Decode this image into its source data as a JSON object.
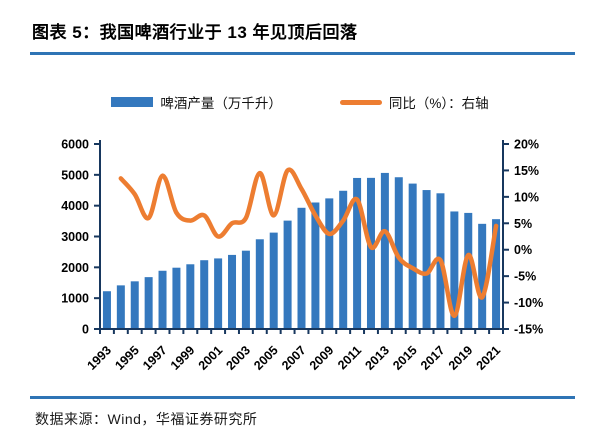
{
  "header": {
    "title": "图表 5：我国啤酒行业于 13 年见顶后回落"
  },
  "legend": [
    {
      "label": "啤酒产量（万千升）",
      "type": "bar",
      "color": "#3478BE"
    },
    {
      "label": "同比（%）：右轴",
      "type": "line",
      "color": "#ED7D31"
    }
  ],
  "footer": {
    "source": "数据来源：Wind，华福证券研究所"
  },
  "colors": {
    "bar": "#3478BE",
    "line": "#ED7D31",
    "axis": "#17375E",
    "rule": "#2E74B5",
    "text": "#000000"
  },
  "chart_data": {
    "type": "bar",
    "title": "我国啤酒行业于13年见顶后回落",
    "categories": [
      "1993",
      "1994",
      "1995",
      "1996",
      "1997",
      "1998",
      "1999",
      "2000",
      "2001",
      "2002",
      "2003",
      "2004",
      "2005",
      "2006",
      "2007",
      "2008",
      "2009",
      "2010",
      "2011",
      "2012",
      "2013",
      "2014",
      "2015",
      "2016",
      "2017",
      "2018",
      "2019",
      "2020",
      "2021"
    ],
    "series": [
      {
        "name": "啤酒产量（万千升）",
        "type": "bar",
        "axis": "left",
        "values": [
          1225,
          1415,
          1546,
          1682,
          1889,
          1988,
          2099,
          2231,
          2289,
          2403,
          2540,
          2910,
          3126,
          3515,
          3931,
          4103,
          4236,
          4483,
          4899,
          4902,
          5062,
          4922,
          4716,
          4506,
          4401,
          3812,
          3765,
          3411,
          3562
        ]
      },
      {
        "name": "同比（%）：右轴",
        "type": "line",
        "axis": "right",
        "values": [
          null,
          13.5,
          10.5,
          6,
          14,
          7,
          5.5,
          6.5,
          2.5,
          5,
          6,
          14.5,
          6.5,
          15,
          11.5,
          6.5,
          3,
          5.5,
          9.5,
          0.5,
          3.5,
          -1.5,
          -3.5,
          -4.5,
          -2,
          -12.5,
          -1,
          -9,
          4.5
        ]
      }
    ],
    "left_axis": {
      "min": 0,
      "max": 6000,
      "step": 1000,
      "ticks": [
        "0",
        "1000",
        "2000",
        "3000",
        "4000",
        "5000",
        "6000"
      ]
    },
    "right_axis": {
      "min": -15,
      "max": 20,
      "step": 5,
      "ticks": [
        "-15%",
        "-10%",
        "-5%",
        "0%",
        "5%",
        "10%",
        "15%",
        "20%"
      ]
    },
    "x_tick_labels": [
      "1993",
      "1995",
      "1997",
      "1999",
      "2001",
      "2003",
      "2005",
      "2007",
      "2009",
      "2011",
      "2013",
      "2015",
      "2017",
      "2019",
      "2021"
    ],
    "grid": false,
    "legend_position": "top"
  }
}
